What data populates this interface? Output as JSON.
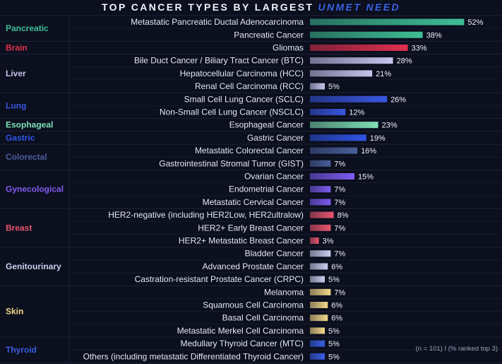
{
  "title": {
    "main": "TOP CANCER TYPES BY LARGEST",
    "accent": "UNMET NEED"
  },
  "note": "(n = 101) I (% ranked top 3)",
  "colors": {
    "background": "#0b0f1e",
    "title_accent": "#3a63e6",
    "Pancreatic": "#3fbf95",
    "Brain": "#e0304f",
    "Liver": "#c7c4ee",
    "Lung": "#3956e0",
    "Esophageal": "#7fe0b5",
    "Gastric": "#2f55e6",
    "Colorectal": "#4a5f9a",
    "Gynecological": "#7e5cf0",
    "Breast": "#e8566e",
    "Genitourinary": "#c9cfee",
    "Skin": "#f3d98a",
    "Thyroid": "#3a5ee6"
  },
  "chart_data": {
    "type": "bar",
    "orientation": "horizontal",
    "value_unit": "%",
    "title": "TOP CANCER TYPES BY LARGEST UNMET NEED",
    "groups": [
      {
        "name": "Pancreatic",
        "items": [
          {
            "label": "Metastatic Pancreatic Ductal Adenocarcinoma",
            "value": 52
          },
          {
            "label": "Pancreatic Cancer",
            "value": 38
          }
        ]
      },
      {
        "name": "Brain",
        "items": [
          {
            "label": "Gliomas",
            "value": 33
          }
        ]
      },
      {
        "name": "Liver",
        "items": [
          {
            "label": "Bile Duct Cancer / Biliary Tract Cancer (BTC)",
            "value": 28
          },
          {
            "label": "Hepatocellular Carcinoma (HCC)",
            "value": 21
          },
          {
            "label": "Renal Cell Carcinoma (RCC)",
            "value": 5
          }
        ]
      },
      {
        "name": "Lung",
        "items": [
          {
            "label": "Small Cell Lung Cancer (SCLC)",
            "value": 26
          },
          {
            "label": "Non-Small Cell Lung Cancer (NSCLC)",
            "value": 12
          }
        ]
      },
      {
        "name": "Esophageal",
        "items": [
          {
            "label": "Esophageal Cancer",
            "value": 23
          }
        ]
      },
      {
        "name": "Gastric",
        "items": [
          {
            "label": "Gastric Cancer",
            "value": 19
          }
        ]
      },
      {
        "name": "Colorectal",
        "items": [
          {
            "label": "Metastatic Colorectal Cancer",
            "value": 16
          },
          {
            "label": "Gastrointestinal Stromal Tumor (GIST)",
            "value": 7
          }
        ]
      },
      {
        "name": "Gynecological",
        "items": [
          {
            "label": "Ovarian Cancer",
            "value": 15
          },
          {
            "label": "Endometrial Cancer",
            "value": 7
          },
          {
            "label": "Metastatic Cervical Cancer",
            "value": 7
          }
        ]
      },
      {
        "name": "Breast",
        "items": [
          {
            "label": "HER2-negative (including HER2Low, HER2ultralow)",
            "value": 8
          },
          {
            "label": "HER2+ Early Breast Cancer",
            "value": 7
          },
          {
            "label": "HER2+ Metastatic Breast Cancer",
            "value": 3
          }
        ]
      },
      {
        "name": "Genitourinary",
        "items": [
          {
            "label": "Bladder Cancer",
            "value": 7
          },
          {
            "label": "Advanced Prostate Cancer",
            "value": 6
          },
          {
            "label": "Castration-resistant Prostate Cancer (CRPC)",
            "value": 5
          }
        ]
      },
      {
        "name": "Skin",
        "items": [
          {
            "label": "Melanoma",
            "value": 7
          },
          {
            "label": "Squamous Cell Carcinoma",
            "value": 6
          },
          {
            "label": "Basal Cell Carcinoma",
            "value": 6
          },
          {
            "label": "Metastatic Merkel Cell Carcinoma",
            "value": 5
          }
        ]
      },
      {
        "name": "Thyroid",
        "items": [
          {
            "label": "Medullary Thyroid Cancer (MTC)",
            "value": 5
          },
          {
            "label": "Others (including metastatic Differentiated Thyroid Cancer)",
            "value": 5
          }
        ]
      }
    ],
    "xlim": [
      0,
      100
    ],
    "grid": false,
    "legend": "none"
  }
}
